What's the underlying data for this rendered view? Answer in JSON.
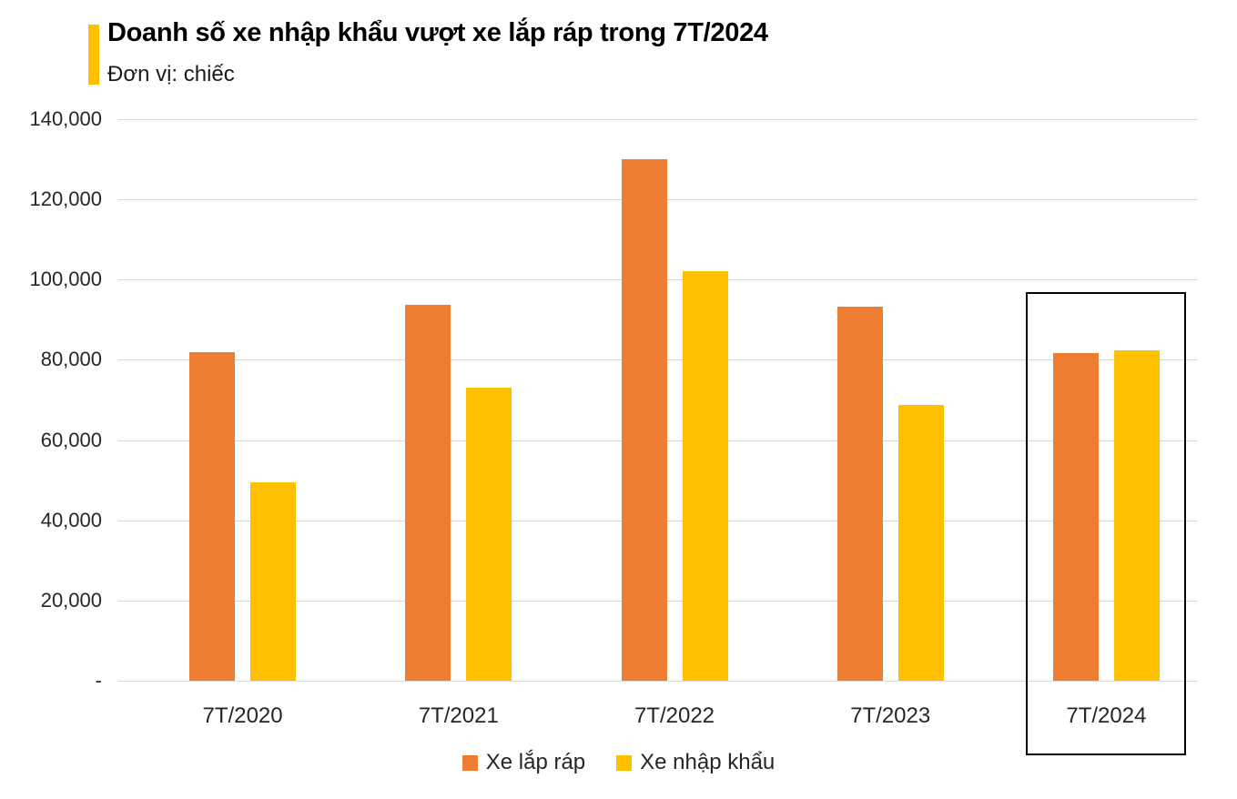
{
  "header": {
    "accent_color": "#FFC000"
  },
  "chart_data": {
    "type": "bar",
    "title": "Doanh số xe nhập khẩu vượt xe lắp ráp trong 7T/2024",
    "unit_label": "Đơn vị: chiếc",
    "categories": [
      "7T/2020",
      "7T/2021",
      "7T/2022",
      "7T/2023",
      "7T/2024"
    ],
    "series": [
      {
        "name": "Xe lắp ráp",
        "color": "#ED7D31",
        "values": [
          82000,
          93700,
          130000,
          93300,
          81700
        ]
      },
      {
        "name": "Xe nhập khẩu",
        "color": "#FFC000",
        "values": [
          49500,
          73000,
          102000,
          68800,
          82300
        ]
      }
    ],
    "ylim": [
      0,
      140000
    ],
    "ytick_step": 20000,
    "ytick_labels": [
      "-",
      "20,000",
      "40,000",
      "60,000",
      "80,000",
      "100,000",
      "120,000",
      "140,000"
    ],
    "grid": true,
    "legend_position": "bottom",
    "highlight": {
      "category": "7T/2024",
      "index": 4,
      "top_value": 97000,
      "border_color": "#000000"
    }
  },
  "colors": {
    "gridline": "#D9D9D9",
    "axis_text": "#262626",
    "background": "#FFFFFF"
  }
}
